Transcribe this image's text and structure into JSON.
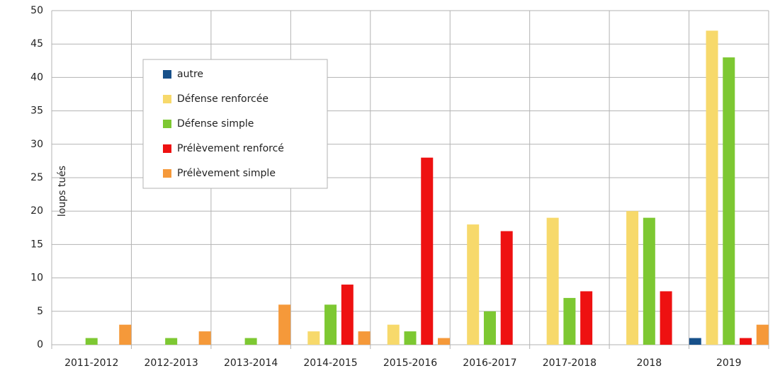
{
  "chart_data": {
    "type": "bar",
    "y_label": "loups tués",
    "categories": [
      "2011-2012",
      "2012-2013",
      "2013-2014",
      "2014-2015",
      "2015-2016",
      "2016-2017",
      "2017-2018",
      "2018",
      "2019"
    ],
    "series": [
      {
        "name": "autre",
        "color": "#17508a",
        "values": [
          0,
          0,
          0,
          0,
          0,
          0,
          0,
          0,
          1
        ]
      },
      {
        "name": "Défense renforcée",
        "color": "#f7d96b",
        "values": [
          0,
          0,
          0,
          2,
          3,
          18,
          19,
          20,
          47
        ]
      },
      {
        "name": "Défense simple",
        "color": "#7dc832",
        "values": [
          1,
          1,
          1,
          6,
          2,
          5,
          7,
          19,
          43
        ]
      },
      {
        "name": "Prélèvement renforcé",
        "color": "#ee1111",
        "values": [
          0,
          0,
          0,
          9,
          28,
          17,
          8,
          8,
          1
        ]
      },
      {
        "name": "Prélèvement simple",
        "color": "#f5993a",
        "values": [
          3,
          2,
          6,
          2,
          1,
          0,
          0,
          0,
          3
        ]
      }
    ],
    "ylim": [
      0,
      50
    ],
    "yticks": [
      0,
      5,
      10,
      15,
      20,
      25,
      30,
      35,
      40,
      45,
      50
    ],
    "grid": true
  }
}
